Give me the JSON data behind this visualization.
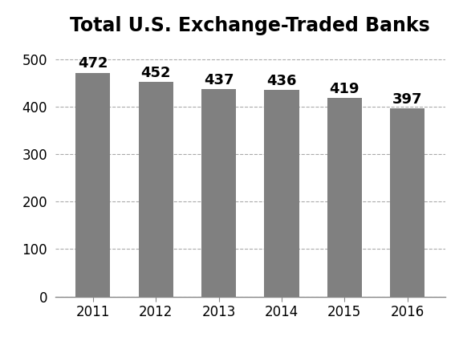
{
  "title": "Total U.S. Exchange-Traded Banks",
  "categories": [
    "2011",
    "2012",
    "2013",
    "2014",
    "2015",
    "2016"
  ],
  "values": [
    472,
    452,
    437,
    436,
    419,
    397
  ],
  "bar_color": "#808080",
  "ylim": [
    0,
    540
  ],
  "yticks": [
    0,
    100,
    200,
    300,
    400,
    500
  ],
  "title_fontsize": 17,
  "tick_fontsize": 12,
  "bar_label_fontsize": 13,
  "background_color": "#ffffff",
  "grid_color": "#aaaaaa",
  "bar_width": 0.55
}
